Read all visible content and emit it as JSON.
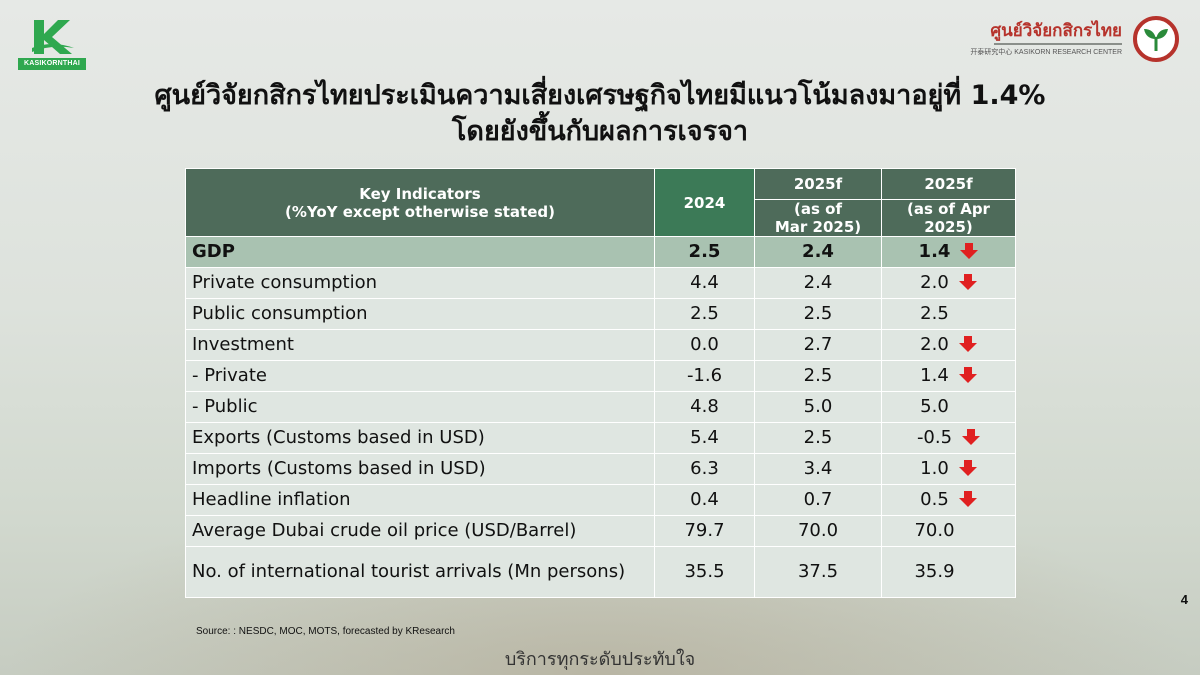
{
  "brand": {
    "left_logo_text": "KASIKORNTHAI",
    "right_logo_thai": "ศูนย์วิจัยกสิกรไทย",
    "right_logo_english": "开泰研究中心 KASIKORN RESEARCH CENTER"
  },
  "title": {
    "line1": "ศูนย์วิจัยกสิกรไทยประเมินความเสี่ยงเศรษฐกิจไทยมีแนวโน้มลงมาอยู่ที่ 1.4%",
    "line2": "โดยยังขึ้นกับผลการเจรจา"
  },
  "table": {
    "header": {
      "indicator_line1": "Key Indicators",
      "indicator_line2": "(%YoY except otherwise stated)",
      "col_2024": "2024",
      "col_mar_year": "2025f",
      "col_mar_sub_line1": "(as of",
      "col_mar_sub_line2": "Mar 2025)",
      "col_apr_year": "2025f",
      "col_apr_sub": "(as of Apr 2025)"
    },
    "rows": [
      {
        "label": "GDP",
        "v2024": "2.5",
        "mar": "2.4",
        "apr": "1.4",
        "down": true
      },
      {
        "label": "Private consumption",
        "v2024": "4.4",
        "mar": "2.4",
        "apr": "2.0",
        "down": true
      },
      {
        "label": "Public consumption",
        "v2024": "2.5",
        "mar": "2.5",
        "apr": "2.5",
        "down": false
      },
      {
        "label": "Investment",
        "v2024": "0.0",
        "mar": "2.7",
        "apr": "2.0",
        "down": true
      },
      {
        "label": "- Private",
        "v2024": "-1.6",
        "mar": "2.5",
        "apr": "1.4",
        "down": true
      },
      {
        "label": "- Public",
        "v2024": "4.8",
        "mar": "5.0",
        "apr": "5.0",
        "down": false
      },
      {
        "label": "Exports (Customs based in USD)",
        "v2024": "5.4",
        "mar": "2.5",
        "apr": "-0.5",
        "down": true
      },
      {
        "label": "Imports (Customs based in USD)",
        "v2024": "6.3",
        "mar": "3.4",
        "apr": "1.0",
        "down": true
      },
      {
        "label": "Headline inflation",
        "v2024": "0.4",
        "mar": "0.7",
        "apr": "0.5",
        "down": true
      },
      {
        "label": "Average Dubai crude oil price (USD/Barrel)",
        "v2024": "79.7",
        "mar": "70.0",
        "apr": "70.0",
        "down": false
      },
      {
        "label": "No. of international tourist arrivals (Mn persons)",
        "v2024": "35.5",
        "mar": "37.5",
        "apr": "35.9",
        "down": false
      }
    ]
  },
  "source": "Source: : NESDC, MOC, MOTS, forecasted by KResearch",
  "page_number": "4",
  "tagline": "บริการทุกระดับประทับใจ",
  "colors": {
    "header_dark": "#4e6b5a",
    "header_green": "#3c7a57",
    "gdp_row": "#a9c2b1",
    "row_bg": "#dfe6e1",
    "arrow_red": "#e02020",
    "brand_green": "#2fa84f",
    "brand_red": "#b6332c"
  },
  "icons": {
    "down_arrow": "down-arrow-icon"
  }
}
